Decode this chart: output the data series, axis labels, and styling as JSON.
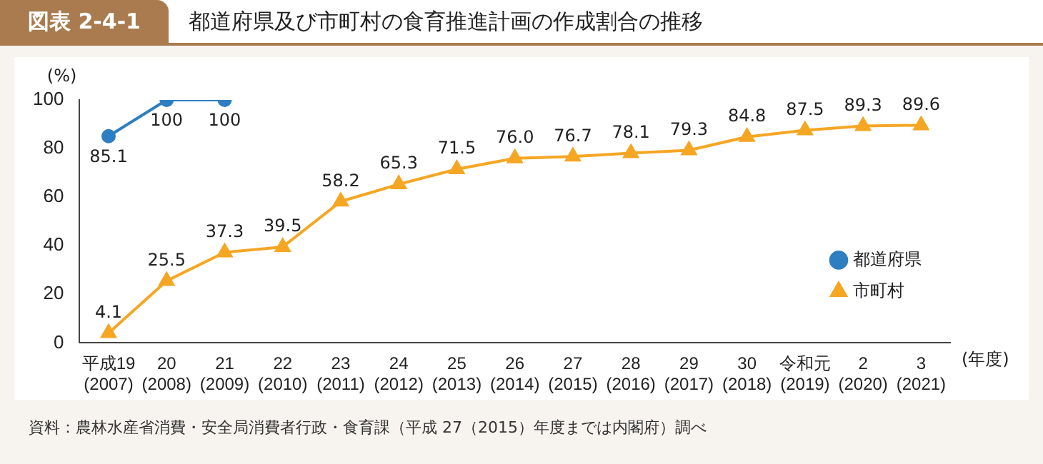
{
  "chart_data": {
    "type": "line",
    "title": "都道府県及び市町村の食育推進計画の作成割合の推移",
    "ylabel": "(%)",
    "xlabel": "(年度)",
    "categories": [
      "平成19\n(2007)",
      "20\n(2008)",
      "21\n(2009)",
      "22\n(2010)",
      "23\n(2011)",
      "24\n(2012)",
      "25\n(2013)",
      "26\n(2014)",
      "27\n(2015)",
      "28\n(2016)",
      "29\n(2017)",
      "30\n(2018)",
      "令和元\n(2019)",
      "2\n(2020)",
      "3\n(2021)"
    ],
    "series": [
      {
        "name": "都道府県",
        "color": "#2e7fc1",
        "marker": "circle",
        "values": [
          85.1,
          100,
          100,
          null,
          null,
          null,
          null,
          null,
          null,
          null,
          null,
          null,
          null,
          null,
          null
        ],
        "value_labels": [
          "85.1",
          "100",
          "100",
          null,
          null,
          null,
          null,
          null,
          null,
          null,
          null,
          null,
          null,
          null,
          null
        ]
      },
      {
        "name": "市町村",
        "color": "#f5a623",
        "marker": "triangle",
        "values": [
          4.1,
          25.5,
          37.3,
          39.5,
          58.2,
          65.3,
          71.5,
          76.0,
          76.7,
          78.1,
          79.3,
          84.8,
          87.5,
          89.3,
          89.6
        ],
        "value_labels": [
          "4.1",
          "25.5",
          "37.3",
          "39.5",
          "58.2",
          "65.3",
          "71.5",
          "76.0",
          "76.7",
          "78.1",
          "79.3",
          "84.8",
          "87.5",
          "89.3",
          "89.6"
        ]
      }
    ],
    "ylim": [
      0,
      100
    ],
    "yticks": [
      0,
      20,
      40,
      60,
      80,
      100
    ],
    "grid": false,
    "legend": "bottom right",
    "annotations": [
      "図表 2-4-1",
      "資料：農林水産省消費・安全局消費者行政・食育課（平成 27（2015）年度までは内閣府）調べ"
    ]
  }
}
